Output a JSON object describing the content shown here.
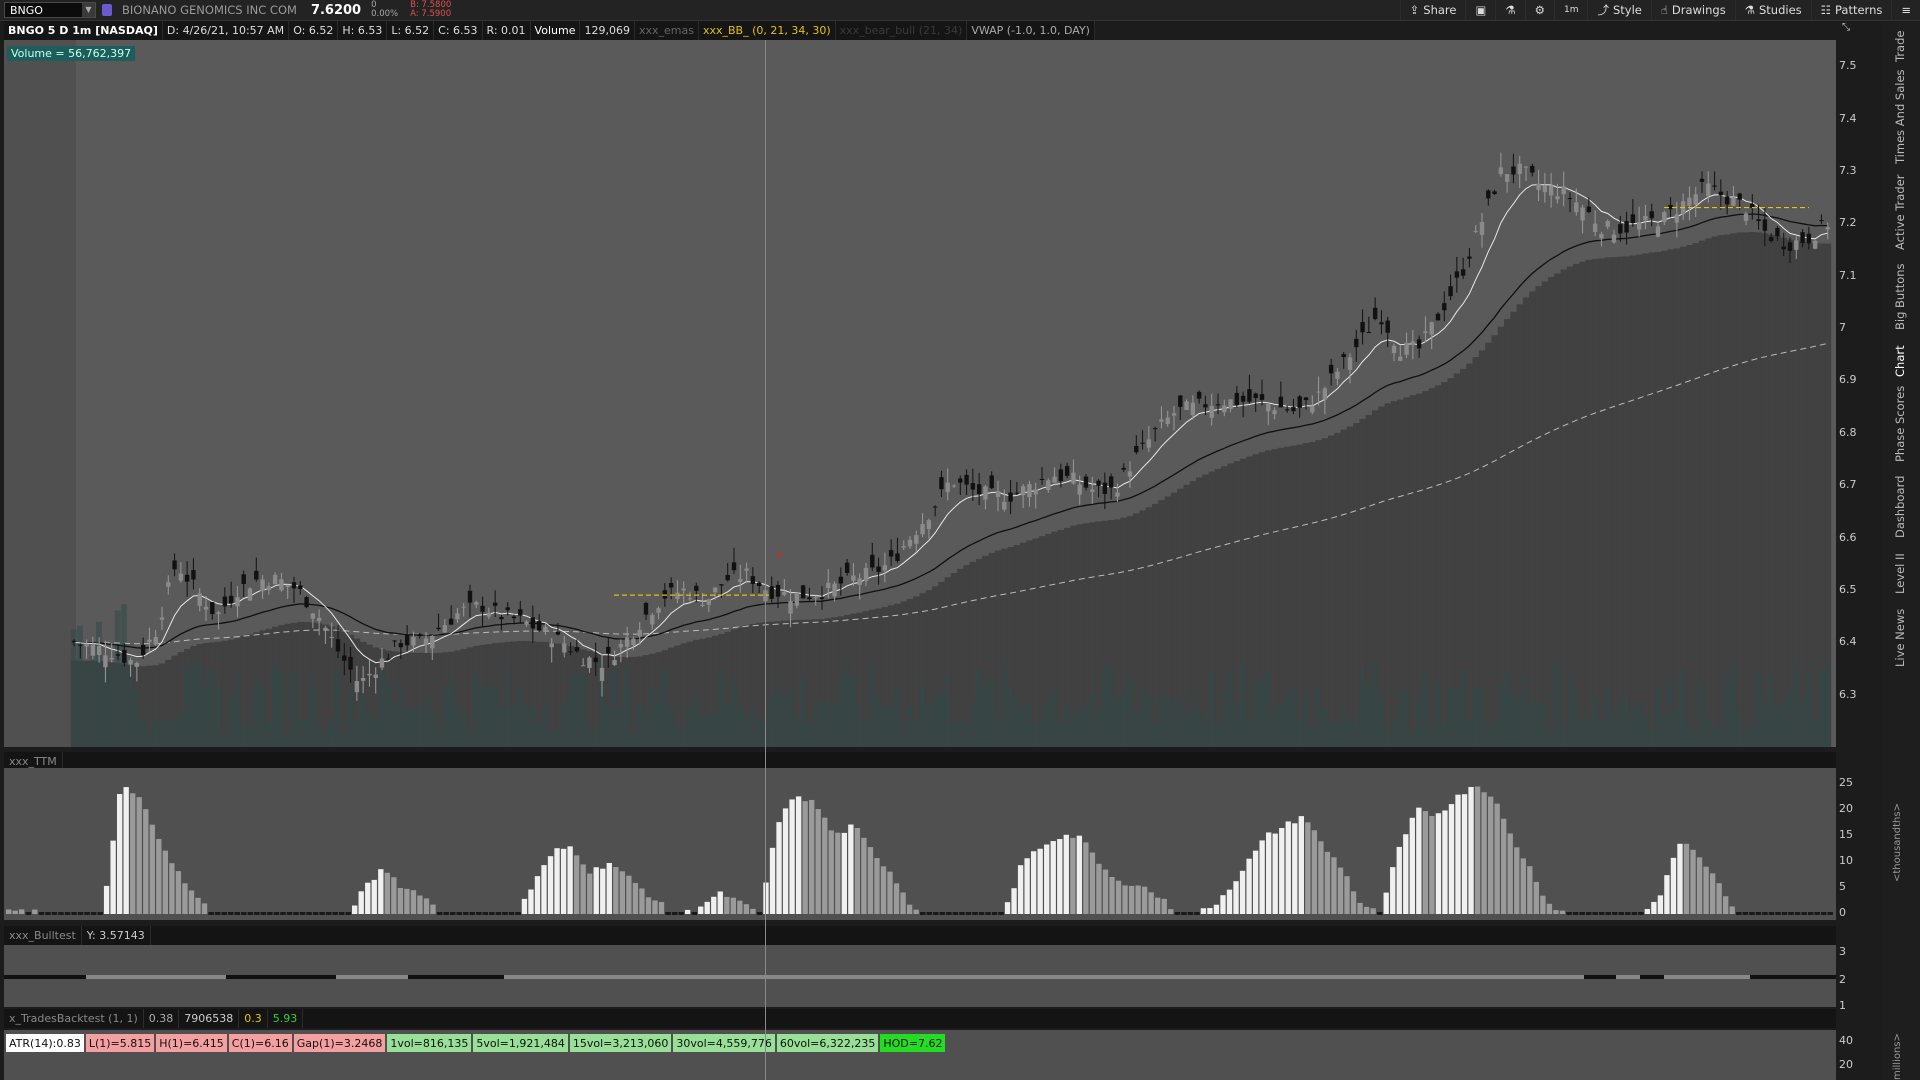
{
  "topbar": {
    "symbol": "BNGO",
    "company": "BIONANO GENOMICS INC COM",
    "last": "7.6200",
    "change": "0",
    "change_pct": "0.00%",
    "bid": "B: 7.5800",
    "ask": "A: 7.5900"
  },
  "toolbar": {
    "share": "Share",
    "style": "Style",
    "drawings": "Drawings",
    "studies": "Studies",
    "patterns": "Patterns",
    "timeframe": "1m"
  },
  "infobar": {
    "title": "BNGO 5 D 1m [NASDAQ]",
    "date": "D: 4/26/21, 10:57 AM",
    "open": "O: 6.52",
    "high": "H: 6.53",
    "low": "L: 6.52",
    "close": "C: 6.53",
    "range": "R: 0.01",
    "volume_label": "Volume",
    "volume_value": "129,069",
    "emas": "xxx_emas",
    "bb": "xxx_BB_ (0, 21, 34, 30)",
    "bear_bull": "xxx_bear_bull (21, 34)",
    "vwap": "VWAP (-1.0, 1.0, DAY)"
  },
  "volume_badge": "Volume = 56,762,397",
  "price_axis": [
    "7.5",
    "7.4",
    "7.3",
    "7.2",
    "7.1",
    "7",
    "6.9",
    "6.8",
    "6.7",
    "6.6",
    "6.5",
    "6.4",
    "6.3"
  ],
  "ttm": {
    "label": "xxx_TTM",
    "axis": [
      "25",
      "20",
      "15",
      "10",
      "5",
      "0"
    ],
    "unit": "<thousandths>"
  },
  "bulltest": {
    "label": "xxx_Bulltest",
    "value": "Y: 3.57143",
    "axis": [
      "3",
      "2",
      "1"
    ]
  },
  "backtest": {
    "label": "x_TradesBacktest (1, 1)",
    "v1": "0.38",
    "v2": "7906538",
    "v3": "0.3",
    "v4": "5.93",
    "axis": [
      "40",
      "20"
    ],
    "unit": "millions>"
  },
  "stats": [
    {
      "text": "ATR(14):0.83",
      "color": "#ffffff"
    },
    {
      "text": "L(1)=5.815",
      "color": "#f4a0a0"
    },
    {
      "text": "H(1)=6.415",
      "color": "#f4a0a0"
    },
    {
      "text": "C(1)=6.16",
      "color": "#f4a0a0"
    },
    {
      "text": "Gap(1)=3.2468",
      "color": "#f4a0a0"
    },
    {
      "text": "1vol=816,135",
      "color": "#98e098"
    },
    {
      "text": "5vol=1,921,484",
      "color": "#98e098"
    },
    {
      "text": "15vol=3,213,060",
      "color": "#98e098"
    },
    {
      "text": "30vol=4,559,776",
      "color": "#98e098"
    },
    {
      "text": "60vol=6,322,235",
      "color": "#98e098"
    },
    {
      "text": "HOD=7.62",
      "color": "#22dd22"
    }
  ],
  "sidebar_tabs": [
    "Trade",
    "Times And Sales",
    "Active Trader",
    "Big Buttons",
    "Chart",
    "Phase Scores",
    "Dashboard",
    "Level II",
    "Live News"
  ],
  "chart_data": {
    "type": "candlestick",
    "symbol": "BNGO",
    "interval": "1m",
    "ylim": [
      6.2,
      7.55
    ],
    "close_series": [
      6.4,
      6.39,
      6.38,
      6.36,
      6.42,
      6.55,
      6.5,
      6.45,
      6.5,
      6.52,
      6.52,
      6.5,
      6.45,
      6.38,
      6.32,
      6.36,
      6.4,
      6.4,
      6.43,
      6.46,
      6.47,
      6.45,
      6.44,
      6.42,
      6.4,
      6.37,
      6.36,
      6.4,
      6.45,
      6.49,
      6.5,
      6.48,
      6.52,
      6.53,
      6.5,
      6.49,
      6.49,
      6.5,
      6.52,
      6.53,
      6.55,
      6.6,
      6.65,
      6.71,
      6.69,
      6.68,
      6.68,
      6.7,
      6.72,
      6.71,
      6.69,
      6.69,
      6.75,
      6.8,
      6.84,
      6.85,
      6.86,
      6.86,
      6.86,
      6.85,
      6.84,
      6.87,
      6.92,
      6.97,
      7.03,
      6.96,
      6.96,
      7.03,
      7.1,
      7.2,
      7.3,
      7.3,
      7.27,
      7.26,
      7.23,
      7.19,
      7.19,
      7.2,
      7.21,
      7.24,
      7.27,
      7.25,
      7.23,
      7.18,
      7.16,
      7.17,
      7.2
    ],
    "ttm_series": [
      1,
      1,
      0,
      0,
      0,
      0,
      25,
      22,
      15,
      8,
      3,
      0,
      0,
      0,
      0,
      0,
      0,
      0,
      0,
      5,
      9,
      5,
      4,
      0,
      0,
      0,
      0,
      0,
      6,
      12,
      13,
      8,
      10,
      7,
      4,
      1,
      0,
      2,
      4,
      2,
      0,
      18,
      23,
      21,
      15,
      17,
      12,
      8,
      2,
      0,
      0,
      0,
      0,
      0,
      10,
      13,
      15,
      15,
      10,
      6,
      6,
      4,
      1,
      0,
      1,
      5,
      10,
      15,
      17,
      19,
      13,
      9,
      2,
      0,
      12,
      20,
      19,
      22,
      25,
      23,
      15,
      9,
      2,
      0,
      0,
      0,
      0,
      0,
      4,
      14,
      11,
      7,
      0,
      0,
      0,
      0,
      0,
      0
    ]
  }
}
